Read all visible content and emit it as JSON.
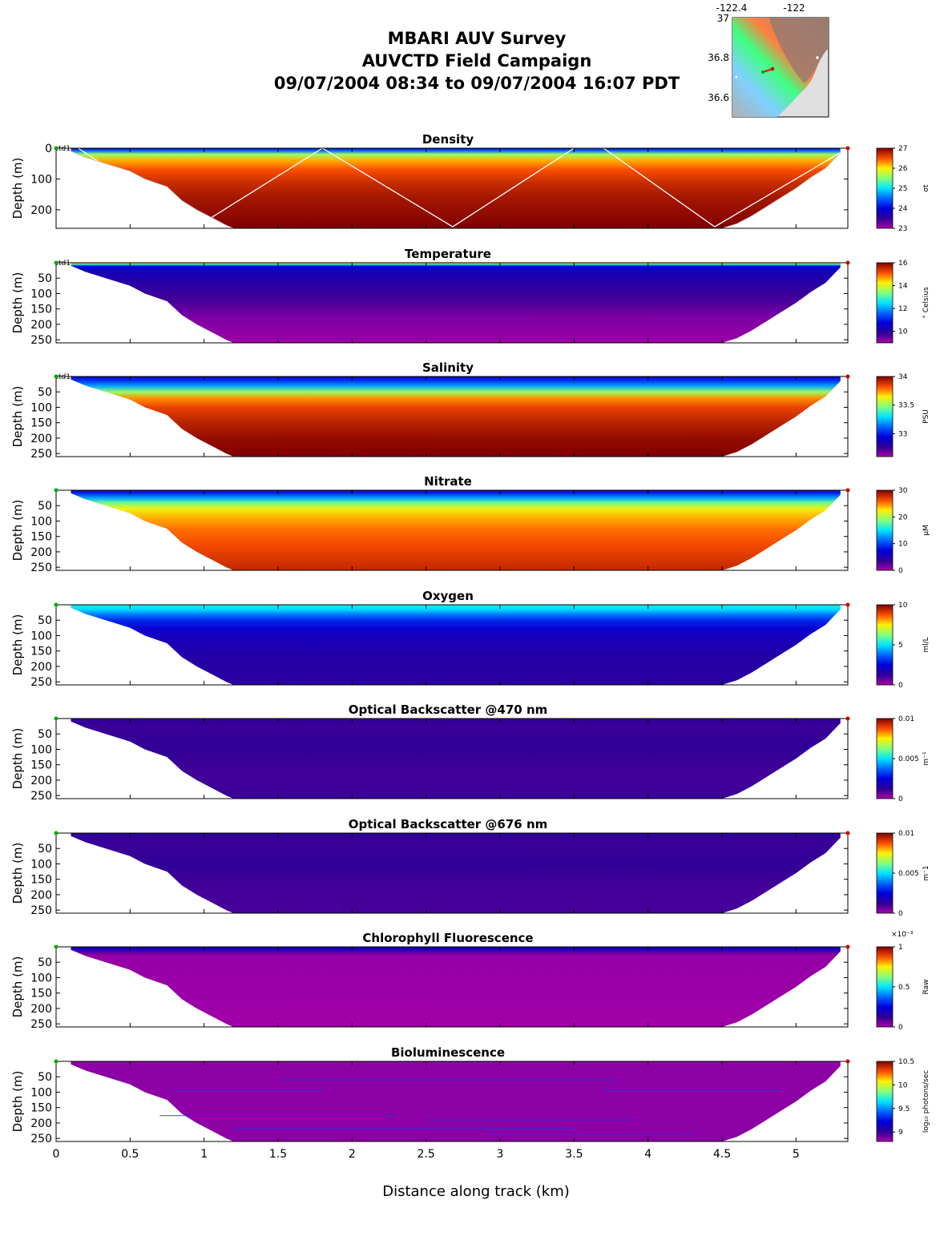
{
  "header": {
    "line1": "MBARI AUV Survey",
    "line2": "AUVCTD Field Campaign",
    "line3": "09/07/2004 08:34  to 09/07/2004 16:07 PDT"
  },
  "inset_map": {
    "x_ticks": [
      "-122.4",
      "-122"
    ],
    "y_ticks": [
      "37",
      "36.8",
      "36.6"
    ],
    "colors": {
      "land": "#9a7a70",
      "ocean": "#e0e0e0",
      "track": "#ff0000"
    }
  },
  "chart_data": {
    "type": "heatmap",
    "xlabel": "Distance along track (km)",
    "x_ticks": [
      0,
      0.5,
      1,
      1.5,
      2,
      2.5,
      3,
      3.5,
      4,
      4.5,
      5
    ],
    "xlim": [
      0,
      5.35
    ],
    "ylim": [
      0,
      260
    ],
    "colormap": "jet",
    "section_outline": [
      [
        0.1,
        0
      ],
      [
        0.1,
        10
      ],
      [
        0.2,
        30
      ],
      [
        0.3,
        45
      ],
      [
        0.5,
        75
      ],
      [
        0.6,
        100
      ],
      [
        0.75,
        125
      ],
      [
        0.85,
        170
      ],
      [
        0.95,
        200
      ],
      [
        1.05,
        225
      ],
      [
        1.15,
        250
      ],
      [
        1.2,
        260
      ],
      [
        4.5,
        260
      ],
      [
        4.6,
        245
      ],
      [
        4.7,
        220
      ],
      [
        4.8,
        190
      ],
      [
        4.9,
        160
      ],
      [
        5.0,
        130
      ],
      [
        5.1,
        95
      ],
      [
        5.2,
        65
      ],
      [
        5.25,
        40
      ],
      [
        5.3,
        15
      ],
      [
        5.3,
        0
      ]
    ],
    "panels": [
      {
        "title": "Density",
        "ylabel": "Depth (m)",
        "y_ticks": [
          0,
          100,
          200
        ],
        "track_label": "ctd1",
        "cbar_label": "σt",
        "cbar_range": [
          23,
          27
        ],
        "cbar_ticks": [
          "27",
          "26",
          "25",
          "24",
          "23"
        ],
        "profile": [
          [
            0,
            23.8
          ],
          [
            8,
            24.5
          ],
          [
            20,
            25.6
          ],
          [
            40,
            26.2
          ],
          [
            70,
            26.5
          ],
          [
            110,
            26.7
          ],
          [
            160,
            26.85
          ],
          [
            260,
            27
          ]
        ],
        "auv_track": [
          [
            0.15,
            0
          ],
          [
            0.95,
            255
          ],
          [
            1.8,
            0
          ],
          [
            2.68,
            255
          ],
          [
            3.5,
            0
          ],
          [
            3.7,
            0
          ],
          [
            4.45,
            255
          ],
          [
            5.35,
            0
          ]
        ]
      },
      {
        "title": "Temperature",
        "ylabel": "Depth (m)",
        "y_ticks": [
          50,
          100,
          150,
          200,
          250
        ],
        "track_label": "ctd1",
        "cbar_label": "° Celsius",
        "cbar_range": [
          9,
          16
        ],
        "cbar_ticks": [
          "16",
          "14",
          "12",
          "10"
        ],
        "profile": [
          [
            0,
            15.5
          ],
          [
            3,
            14
          ],
          [
            7,
            12
          ],
          [
            12,
            10.8
          ],
          [
            30,
            10.3
          ],
          [
            70,
            10
          ],
          [
            120,
            9.7
          ],
          [
            180,
            9.3
          ],
          [
            260,
            9.1
          ]
        ]
      },
      {
        "title": "Salinity",
        "ylabel": "Depth (m)",
        "y_ticks": [
          50,
          100,
          150,
          200,
          250
        ],
        "track_label": "ctd1",
        "cbar_label": "PSU",
        "cbar_range": [
          32.6,
          34
        ],
        "cbar_ticks": [
          "34",
          "33.5",
          "33"
        ],
        "profile": [
          [
            0,
            32.9
          ],
          [
            15,
            33.05
          ],
          [
            30,
            33.2
          ],
          [
            50,
            33.5
          ],
          [
            70,
            33.75
          ],
          [
            100,
            33.85
          ],
          [
            150,
            33.92
          ],
          [
            200,
            33.97
          ],
          [
            260,
            34
          ]
        ]
      },
      {
        "title": "Nitrate",
        "ylabel": "Depth (m)",
        "y_ticks": [
          50,
          100,
          150,
          200,
          250
        ],
        "cbar_label": "µM",
        "cbar_range": [
          0,
          30
        ],
        "cbar_ticks": [
          "30",
          "20",
          "10",
          "0"
        ],
        "profile": [
          [
            0,
            5
          ],
          [
            10,
            9
          ],
          [
            25,
            13
          ],
          [
            40,
            18
          ],
          [
            60,
            22
          ],
          [
            90,
            24
          ],
          [
            130,
            25.5
          ],
          [
            180,
            26.5
          ],
          [
            260,
            28
          ]
        ]
      },
      {
        "title": "Oxygen",
        "ylabel": "Depth (m)",
        "y_ticks": [
          50,
          100,
          150,
          200,
          250
        ],
        "cbar_label": "ml/L",
        "cbar_range": [
          0,
          10
        ],
        "cbar_ticks": [
          "10",
          "5",
          "0"
        ],
        "profile": [
          [
            0,
            5.2
          ],
          [
            15,
            4.9
          ],
          [
            30,
            4
          ],
          [
            50,
            3
          ],
          [
            80,
            2.2
          ],
          [
            120,
            1.8
          ],
          [
            180,
            1.5
          ],
          [
            260,
            1.4
          ]
        ]
      },
      {
        "title": "Optical Backscatter @470 nm",
        "ylabel": "Depth (m)",
        "y_ticks": [
          50,
          100,
          150,
          200,
          250
        ],
        "cbar_label": "m⁻¹",
        "cbar_range": [
          0,
          0.01
        ],
        "cbar_ticks": [
          "0.01",
          "0.005",
          "0"
        ],
        "profile": [
          [
            0,
            0.0012
          ],
          [
            30,
            0.0011
          ],
          [
            100,
            0.0012
          ],
          [
            180,
            0.001
          ],
          [
            260,
            0.0011
          ]
        ]
      },
      {
        "title": "Optical Backscatter @676 nm",
        "ylabel": "Depth (m)",
        "y_ticks": [
          50,
          100,
          150,
          200,
          250
        ],
        "cbar_label": "m⁻1",
        "cbar_range": [
          0,
          0.01
        ],
        "cbar_ticks": [
          "0.01",
          "0.005",
          "0"
        ],
        "profile": [
          [
            0,
            0.0013
          ],
          [
            30,
            0.0011
          ],
          [
            100,
            0.0012
          ],
          [
            180,
            0.001
          ],
          [
            260,
            0.001
          ]
        ]
      },
      {
        "title": "Chlorophyll Fluorescence",
        "ylabel": "Depth (m)",
        "y_ticks": [
          50,
          100,
          150,
          200,
          250
        ],
        "cbar_label": "Raw",
        "cbar_exponent": "×10⁻³",
        "cbar_range": [
          0,
          1
        ],
        "cbar_ticks": [
          "1",
          "0.5",
          "0"
        ],
        "profile": [
          [
            0,
            0.12
          ],
          [
            8,
            0.22
          ],
          [
            16,
            0.08
          ],
          [
            30,
            0.02
          ],
          [
            260,
            0.01
          ]
        ]
      },
      {
        "title": "Bioluminescence",
        "ylabel": "Depth (m)",
        "y_ticks": [
          50,
          100,
          150,
          200,
          250
        ],
        "cbar_label": "log₁₀ photons/sec",
        "cbar_range": [
          8.8,
          10.5
        ],
        "cbar_ticks": [
          "10.5",
          "10",
          "9.5",
          "9"
        ],
        "profile": [
          [
            0,
            8.85
          ],
          [
            260,
            8.85
          ]
        ]
      }
    ]
  }
}
